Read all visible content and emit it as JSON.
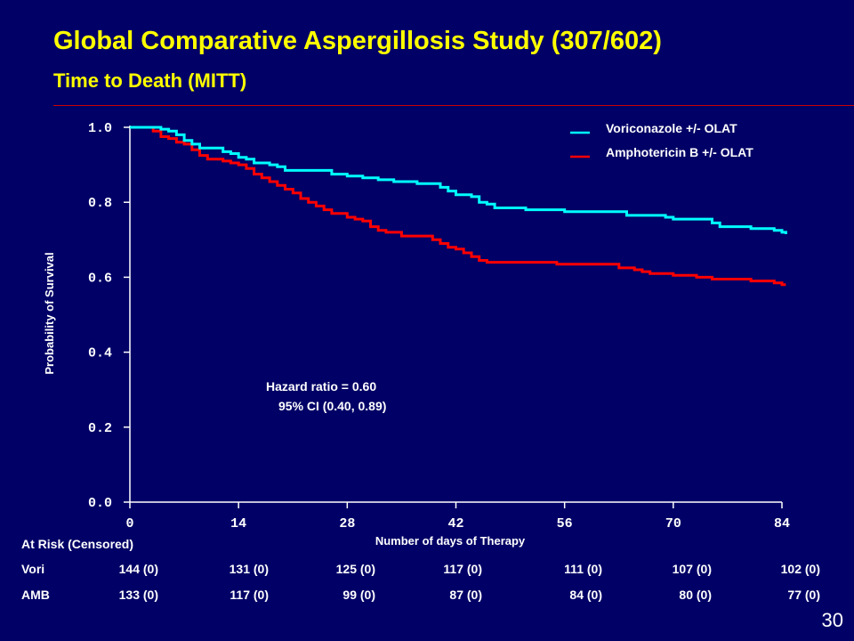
{
  "slide": {
    "title": "Global Comparative Aspergillosis Study (307/602)",
    "subtitle": "Time to Death (MITT)",
    "slide_number": "30",
    "colors": {
      "background": "#000066",
      "title": "#ffff00",
      "rule": "#cc0000"
    }
  },
  "chart_data": {
    "type": "line",
    "title": "",
    "xlabel": "Number of days of Therapy",
    "ylabel": "Probability of Survival",
    "xlim": [
      0,
      84
    ],
    "ylim": [
      0,
      1.0
    ],
    "x_ticks": [
      "0",
      "14",
      "28",
      "42",
      "56",
      "70",
      "84"
    ],
    "y_ticks": [
      "1.0",
      "0.8",
      "0.6",
      "0.4",
      "0.2",
      "0.0"
    ],
    "grid": false,
    "legend_position": "top-right",
    "series": [
      {
        "name": "Voriconazole +/- OLAT",
        "color": "#00ffff",
        "step": true,
        "points": [
          [
            0,
            1.0
          ],
          [
            3.5,
            1.0
          ],
          [
            4,
            0.995
          ],
          [
            5,
            0.99
          ],
          [
            6,
            0.98
          ],
          [
            7,
            0.965
          ],
          [
            8,
            0.955
          ],
          [
            9,
            0.945
          ],
          [
            11,
            0.945
          ],
          [
            12,
            0.935
          ],
          [
            13,
            0.93
          ],
          [
            14,
            0.92
          ],
          [
            15,
            0.915
          ],
          [
            16,
            0.905
          ],
          [
            18,
            0.9
          ],
          [
            19,
            0.895
          ],
          [
            20,
            0.885
          ],
          [
            25,
            0.885
          ],
          [
            26,
            0.875
          ],
          [
            28,
            0.87
          ],
          [
            30,
            0.865
          ],
          [
            32,
            0.86
          ],
          [
            34,
            0.855
          ],
          [
            37,
            0.85
          ],
          [
            40,
            0.84
          ],
          [
            41,
            0.83
          ],
          [
            42,
            0.82
          ],
          [
            44,
            0.815
          ],
          [
            45,
            0.8
          ],
          [
            46,
            0.795
          ],
          [
            47,
            0.785
          ],
          [
            50,
            0.785
          ],
          [
            51,
            0.78
          ],
          [
            55,
            0.78
          ],
          [
            56,
            0.775
          ],
          [
            63,
            0.775
          ],
          [
            64,
            0.765
          ],
          [
            68,
            0.765
          ],
          [
            69,
            0.76
          ],
          [
            70,
            0.755
          ],
          [
            74,
            0.755
          ],
          [
            75,
            0.745
          ],
          [
            76,
            0.735
          ],
          [
            79,
            0.735
          ],
          [
            80,
            0.73
          ],
          [
            83,
            0.725
          ],
          [
            84,
            0.72
          ],
          [
            84.5,
            0.715
          ]
        ]
      },
      {
        "name": "Amphotericin B +/- OLAT",
        "color": "#ff0000",
        "step": true,
        "points": [
          [
            0,
            1.0
          ],
          [
            2,
            1.0
          ],
          [
            3,
            0.99
          ],
          [
            4,
            0.975
          ],
          [
            5,
            0.97
          ],
          [
            6,
            0.96
          ],
          [
            7,
            0.955
          ],
          [
            8,
            0.94
          ],
          [
            9,
            0.925
          ],
          [
            10,
            0.915
          ],
          [
            12,
            0.91
          ],
          [
            13,
            0.905
          ],
          [
            14,
            0.9
          ],
          [
            15,
            0.89
          ],
          [
            16,
            0.875
          ],
          [
            17,
            0.865
          ],
          [
            18,
            0.855
          ],
          [
            19,
            0.845
          ],
          [
            20,
            0.835
          ],
          [
            21,
            0.825
          ],
          [
            22,
            0.81
          ],
          [
            23,
            0.8
          ],
          [
            24,
            0.79
          ],
          [
            25,
            0.78
          ],
          [
            26,
            0.77
          ],
          [
            28,
            0.76
          ],
          [
            29,
            0.755
          ],
          [
            30,
            0.75
          ],
          [
            31,
            0.735
          ],
          [
            32,
            0.725
          ],
          [
            33,
            0.72
          ],
          [
            35,
            0.71
          ],
          [
            38,
            0.71
          ],
          [
            39,
            0.7
          ],
          [
            40,
            0.69
          ],
          [
            41,
            0.68
          ],
          [
            42,
            0.675
          ],
          [
            43,
            0.665
          ],
          [
            44,
            0.655
          ],
          [
            45,
            0.645
          ],
          [
            46,
            0.64
          ],
          [
            54,
            0.64
          ],
          [
            55,
            0.635
          ],
          [
            62,
            0.635
          ],
          [
            63,
            0.625
          ],
          [
            65,
            0.62
          ],
          [
            66,
            0.615
          ],
          [
            67,
            0.61
          ],
          [
            70,
            0.605
          ],
          [
            73,
            0.6
          ],
          [
            75,
            0.595
          ],
          [
            79,
            0.595
          ],
          [
            80,
            0.59
          ],
          [
            83,
            0.585
          ],
          [
            84,
            0.58
          ],
          [
            84.5,
            0.58
          ]
        ]
      }
    ],
    "annotations": [
      "Hazard ratio = 0.60",
      "95% CI (0.40, 0.89)"
    ],
    "at_risk": {
      "header": "At Risk (Censored)",
      "rows": [
        {
          "label": "Vori",
          "values": [
            "144 (0)",
            "131 (0)",
            "125 (0)",
            "117 (0)",
            "111 (0)",
            "107 (0)",
            "102 (0)"
          ]
        },
        {
          "label": "AMB",
          "values": [
            "133 (0)",
            "117 (0)",
            "99 (0)",
            "87 (0)",
            "84 (0)",
            "80 (0)",
            "77 (0)"
          ]
        }
      ]
    }
  }
}
